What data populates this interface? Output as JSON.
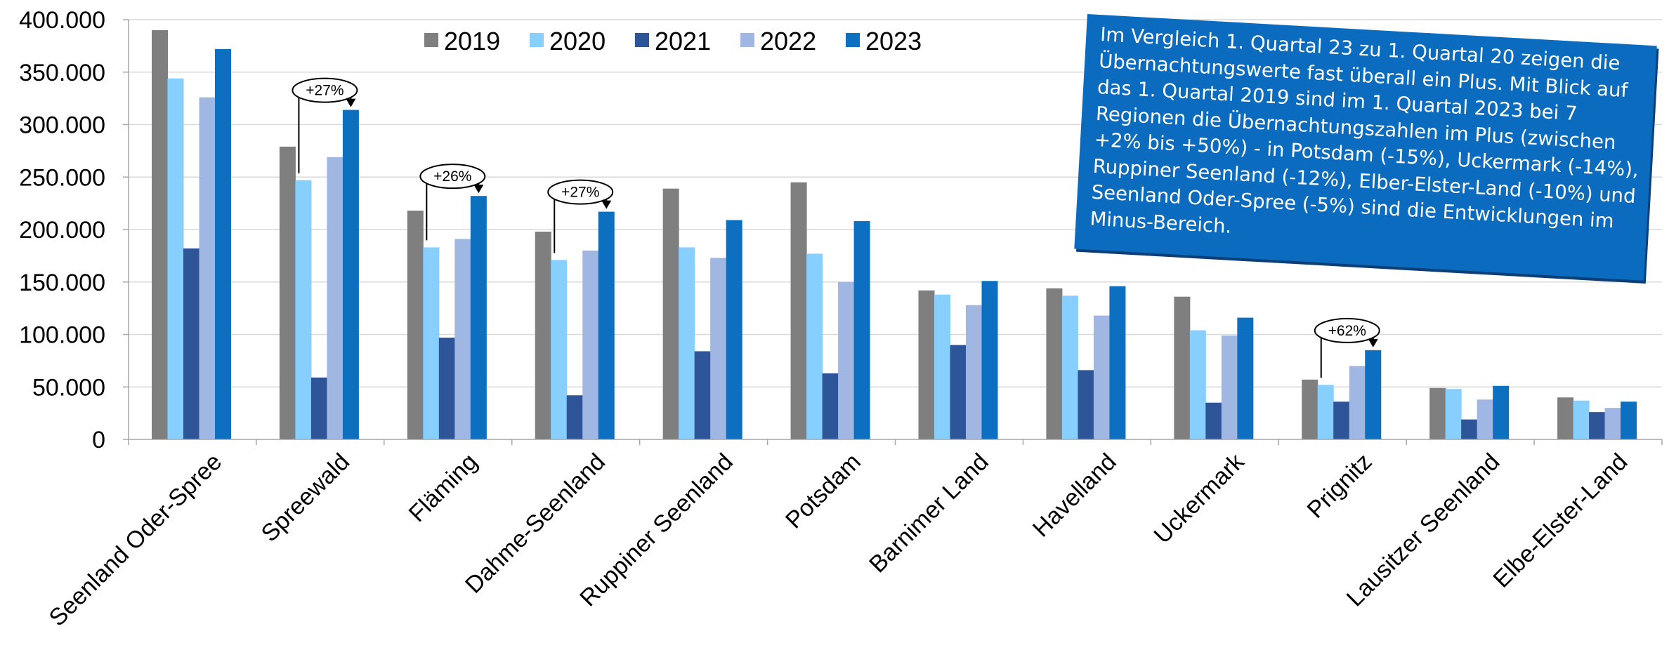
{
  "chart_data": {
    "type": "bar",
    "categories": [
      "Seenland Oder-Spree",
      "Spreewald",
      "Fläming",
      "Dahme-Seenland",
      "Ruppiner Seenland",
      "Potsdam",
      "Barnimer Land",
      "Havelland",
      "Uckermark",
      "Prignitz",
      "Lausitzer Seenland",
      "Elbe-Elster-Land"
    ],
    "series": [
      {
        "name": "2019",
        "color": "#7f7f7f",
        "values": [
          390000,
          279000,
          218000,
          198000,
          239000,
          245000,
          142000,
          144000,
          136000,
          57000,
          49000,
          40000
        ]
      },
      {
        "name": "2020",
        "color": "#86cfff",
        "values": [
          344000,
          247000,
          183000,
          171000,
          183000,
          177000,
          138000,
          137000,
          104000,
          52000,
          48000,
          37000
        ]
      },
      {
        "name": "2021",
        "color": "#2e5597",
        "values": [
          182000,
          59000,
          97000,
          42000,
          84000,
          63000,
          90000,
          66000,
          35000,
          36000,
          19000,
          26000
        ]
      },
      {
        "name": "2022",
        "color": "#9fb7e2",
        "values": [
          326000,
          269000,
          191000,
          180000,
          173000,
          150000,
          128000,
          118000,
          99000,
          70000,
          38000,
          30000
        ]
      },
      {
        "name": "2023",
        "color": "#0d6fc0",
        "values": [
          372000,
          314000,
          232000,
          217000,
          209000,
          208000,
          151000,
          146000,
          116000,
          85000,
          51000,
          36000
        ]
      }
    ],
    "yticks": [
      "0",
      "50.000",
      "100.000",
      "150.000",
      "200.000",
      "250.000",
      "300.000",
      "350.000",
      "400.000"
    ],
    "ylim": [
      0,
      400000
    ],
    "grid": true,
    "legend_position": "top",
    "annotations": [
      {
        "label": "+27%",
        "category": "Spreewald",
        "from_series": "2020",
        "to_series": "2023"
      },
      {
        "label": "+26%",
        "category": "Fläming",
        "from_series": "2020",
        "to_series": "2023"
      },
      {
        "label": "+27%",
        "category": "Dahme-Seenland",
        "from_series": "2020",
        "to_series": "2023"
      },
      {
        "label": "+62%",
        "category": "Prignitz",
        "from_series": "2020",
        "to_series": "2023"
      }
    ]
  },
  "note": {
    "text": "Im Vergleich 1. Quartal 23 zu 1. Quartal 20 zeigen die Übernachtungswerte fast überall ein Plus. Mit Blick auf das 1. Quartal 2019 sind im 1. Quartal 2023 bei 7 Regionen die Übernachtungszahlen im Plus (zwischen +2% bis +50%) - in Potsdam (-15%), Uckermark (-14%), Ruppiner Seenland (-12%), Elber-Elster-Land (-10%) und Seenland Oder-Spree (-5%) sind die Entwicklungen im Minus-Bereich.",
    "color": "#0a6bbf"
  }
}
